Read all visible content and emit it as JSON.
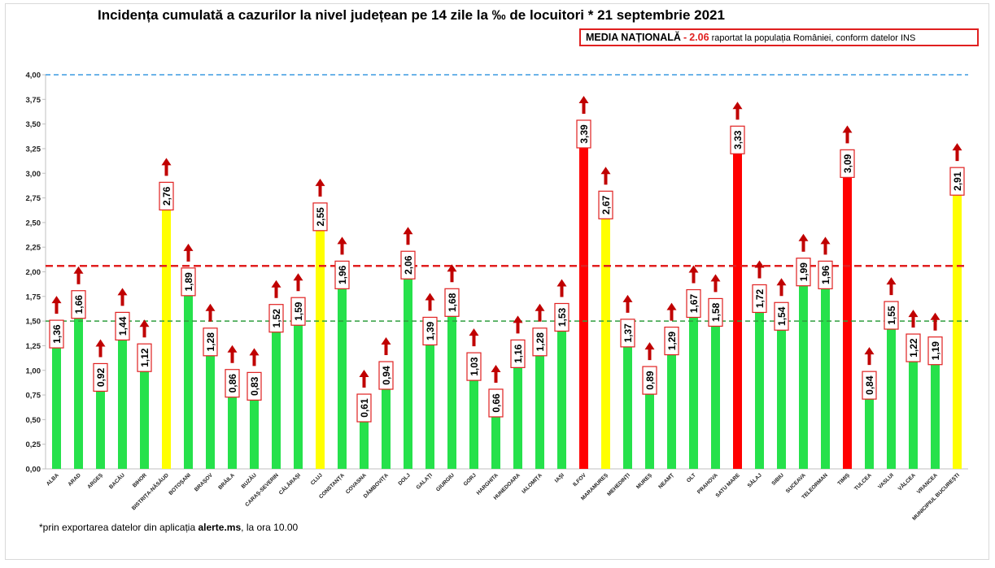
{
  "title": "Incidența cumulată a cazurilor la nivel județean pe 14 zile la ‰ de locuitori *  21 septembrie 2021",
  "media": {
    "label": "MEDIA NAȚIONALĂ",
    "dash": "-",
    "value": "2.06",
    "suffix": "raportat la populația României, conform datelor INS"
  },
  "footnote": {
    "prefix": "*prin exportarea  datelor din aplicația ",
    "app": "alerte.ms",
    "suffix": ", la ora 10.00"
  },
  "chart_data": {
    "type": "bar",
    "ylim": [
      0,
      4
    ],
    "y_ticks": [
      "0,00",
      "0,25",
      "0,50",
      "0,75",
      "1,00",
      "1,25",
      "1,50",
      "1,75",
      "2,00",
      "2,25",
      "2,50",
      "2,75",
      "3,00",
      "3,25",
      "3,50",
      "3,75",
      "4,00"
    ],
    "categories": [
      "ALBA",
      "ARAD",
      "ARGEȘ",
      "BACĂU",
      "BIHOR",
      "BISTRIȚA-NĂSĂUD",
      "BOTOȘANI",
      "BRAȘOV",
      "BRĂILA",
      "BUZĂU",
      "CARAȘ-SEVERIN",
      "CĂLĂRAȘI",
      "CLUJ",
      "CONSTANȚA",
      "COVASNA",
      "DÂMBOVIȚA",
      "DOLJ",
      "GALAȚI",
      "GIURGIU",
      "GORJ",
      "HARGHITA",
      "HUNEDOARA",
      "IALOMIȚA",
      "IAȘI",
      "ILFOV",
      "MARAMUREȘ",
      "MEHEDINȚI",
      "MUREȘ",
      "NEAMȚ",
      "OLT",
      "PRAHOVA",
      "SATU MARE",
      "SĂLAJ",
      "SIBIU",
      "SUCEAVA",
      "TELEORMAN",
      "TIMIȘ",
      "TULCEA",
      "VASLUI",
      "VÂLCEA",
      "VRANCEA",
      "MUNICIPIUL BUCUREȘTI"
    ],
    "values": [
      1.36,
      1.66,
      0.92,
      1.44,
      1.12,
      2.76,
      1.89,
      1.28,
      0.86,
      0.83,
      1.52,
      1.59,
      2.55,
      1.96,
      0.61,
      0.94,
      2.06,
      1.39,
      1.68,
      1.03,
      0.66,
      1.16,
      1.28,
      1.53,
      3.39,
      2.67,
      1.37,
      0.89,
      1.29,
      1.67,
      1.58,
      3.33,
      1.72,
      1.54,
      1.99,
      1.96,
      3.09,
      0.84,
      1.55,
      1.22,
      1.19,
      2.91
    ],
    "value_labels": [
      "1,36",
      "1,66",
      "0,92",
      "1,44",
      "1,12",
      "2,76",
      "1,89",
      "1,28",
      "0,86",
      "0,83",
      "1,52",
      "1,59",
      "2,55",
      "1,96",
      "0,61",
      "0,94",
      "2,06",
      "1,39",
      "1,68",
      "1,03",
      "0,66",
      "1,16",
      "1,28",
      "1,53",
      "3,39",
      "2,67",
      "1,37",
      "0,89",
      "1,29",
      "1,67",
      "1,58",
      "3,33",
      "1,72",
      "1,54",
      "1,99",
      "1,96",
      "3,09",
      "0,84",
      "1,55",
      "1,22",
      "1,19",
      "2,91"
    ],
    "trend": [
      "up",
      "up",
      "up",
      "up",
      "up",
      "up",
      "up",
      "up",
      "up",
      "up",
      "up",
      "up",
      "up",
      "up",
      "up",
      "up",
      "up",
      "up",
      "up",
      "up",
      "up",
      "up",
      "up",
      "up",
      "up",
      "up",
      "up",
      "up",
      "up",
      "up",
      "up",
      "up",
      "up",
      "up",
      "up",
      "up",
      "up",
      "up",
      "up",
      "up",
      "up",
      "up"
    ],
    "reference_lines": [
      {
        "value": 4.0,
        "color": "#3b9be0",
        "style": "dashed"
      },
      {
        "value": 2.06,
        "color": "#e02020",
        "style": "dashed"
      },
      {
        "value": 1.5,
        "color": "#2e9e3e",
        "style": "dashed"
      }
    ],
    "colors": {
      "green": "#26e14b",
      "yellow": "#ffff00",
      "red": "#ff0000",
      "arrow": "#c00000",
      "label_border": "#e02020"
    },
    "thresholds": {
      "yellow_from": 1.5,
      "red_from": 3.0
    },
    "grid": false,
    "legend": "none"
  }
}
